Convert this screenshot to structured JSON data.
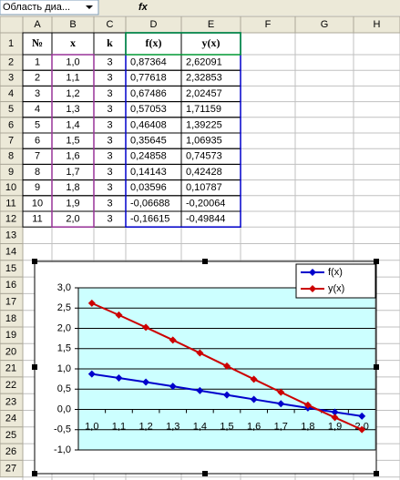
{
  "toolbar": {
    "name_box": "Область диа...",
    "formula_icon": "fx"
  },
  "sheet": {
    "columns": [
      "A",
      "B",
      "C",
      "D",
      "E",
      "F",
      "G",
      "H"
    ],
    "rows": [
      "1",
      "2",
      "3",
      "4",
      "5",
      "6",
      "7",
      "8",
      "9",
      "10",
      "11",
      "12",
      "13",
      "14",
      "15",
      "16",
      "17",
      "18",
      "19",
      "20",
      "21",
      "22",
      "23",
      "24",
      "25",
      "26",
      "27"
    ]
  },
  "table": {
    "header": [
      "№",
      "x",
      "k",
      "f(x)",
      "y(x)"
    ],
    "rows": [
      [
        "1",
        "1,0",
        "3",
        "0,87364",
        "2,62091"
      ],
      [
        "2",
        "1,1",
        "3",
        "0,77618",
        "2,32853"
      ],
      [
        "3",
        "1,2",
        "3",
        "0,67486",
        "2,02457"
      ],
      [
        "4",
        "1,3",
        "3",
        "0,57053",
        "1,71159"
      ],
      [
        "5",
        "1,4",
        "3",
        "0,46408",
        "1,39225"
      ],
      [
        "6",
        "1,5",
        "3",
        "0,35645",
        "1,06935"
      ],
      [
        "7",
        "1,6",
        "3",
        "0,24858",
        "0,74573"
      ],
      [
        "8",
        "1,7",
        "3",
        "0,14143",
        "0,42428"
      ],
      [
        "9",
        "1,8",
        "3",
        "0,03596",
        "0,10787"
      ],
      [
        "10",
        "1,9",
        "3",
        "-0,06688",
        "-0,20064"
      ],
      [
        "11",
        "2,0",
        "3",
        "-0,16615",
        "-0,49844"
      ]
    ]
  },
  "chart_data": {
    "type": "line",
    "categories": [
      "1,0",
      "1,1",
      "1,2",
      "1,3",
      "1,4",
      "1,5",
      "1,6",
      "1,7",
      "1,8",
      "1,9",
      "2,0"
    ],
    "series": [
      {
        "name": "f(x)",
        "color": "#0000cc",
        "values": [
          0.87364,
          0.77618,
          0.67486,
          0.57053,
          0.46408,
          0.35645,
          0.24858,
          0.14143,
          0.03596,
          -0.06688,
          -0.16615
        ]
      },
      {
        "name": "y(x)",
        "color": "#cc0000",
        "values": [
          2.62091,
          2.32853,
          2.02457,
          1.71159,
          1.39225,
          1.06935,
          0.74573,
          0.42428,
          0.10787,
          -0.20064,
          -0.49844
        ]
      }
    ],
    "ylim": [
      -1,
      3
    ],
    "yticks": [
      {
        "value": -1,
        "label": "-1,0"
      },
      {
        "value": -0.5,
        "label": "-0,5"
      },
      {
        "value": 0,
        "label": "0,0"
      },
      {
        "value": 0.5,
        "label": "0,5"
      },
      {
        "value": 1,
        "label": "1,0"
      },
      {
        "value": 1.5,
        "label": "1,5"
      },
      {
        "value": 2,
        "label": "2,0"
      },
      {
        "value": 2.5,
        "label": "2,5"
      },
      {
        "value": 3,
        "label": "3,0"
      }
    ],
    "grid": true,
    "legend": "top-right",
    "plot_background": "#ccffff"
  }
}
